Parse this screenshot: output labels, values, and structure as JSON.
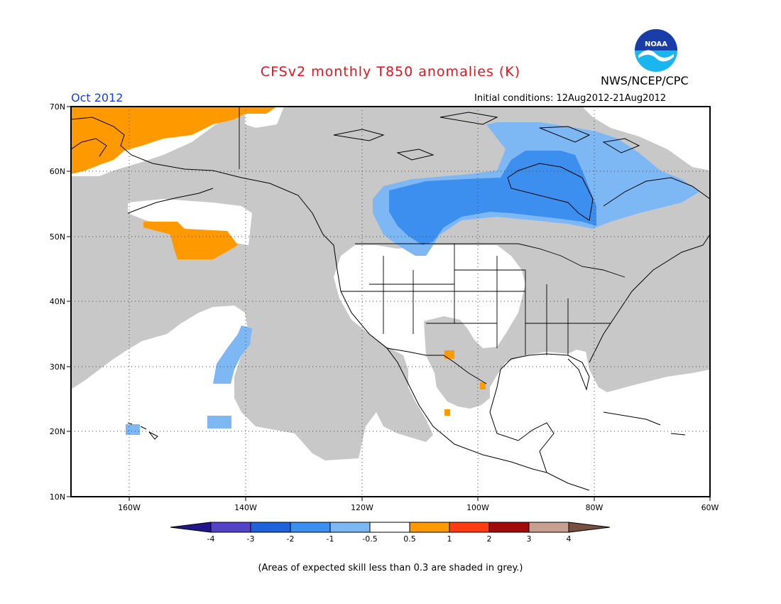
{
  "header": {
    "title": "CFSv2 monthly T850 anomalies (K)",
    "organization": "NWS/NCEP/CPC",
    "logo_text": "NOAA",
    "month": "Oct 2012",
    "initial_conditions": "Initial conditions: 12Aug2012-21Aug2012"
  },
  "map": {
    "lat_labels": [
      "70N",
      "60N",
      "50N",
      "40N",
      "30N",
      "20N",
      "10N"
    ],
    "lon_labels": [
      "160W",
      "140W",
      "120W",
      "100W",
      "80W",
      "60W"
    ],
    "extent": {
      "lon_min": -170,
      "lon_max": -60,
      "lat_min": 10,
      "lat_max": 70
    }
  },
  "colorbar": {
    "labels": [
      "-4",
      "-3",
      "-2",
      "-1",
      "-0.5",
      "0.5",
      "1",
      "2",
      "3",
      "4"
    ],
    "colors": [
      "#22168e",
      "#5443c9",
      "#1f62d9",
      "#3c8fee",
      "#7db8f5",
      "#ffffff",
      "#ff9900",
      "#ff3c14",
      "#a00a0a",
      "#c8a091",
      "#785040"
    ]
  },
  "colors": {
    "grey_shade": "#c8c8c8",
    "orange": "#ff9900",
    "light_blue": "#7db8f5",
    "mid_blue": "#3c8fee",
    "title_red": "#e8141c",
    "month_blue": "#1a3ee8"
  },
  "footnote": "(Areas of expected skill less than 0.3 are shaded in grey.)"
}
